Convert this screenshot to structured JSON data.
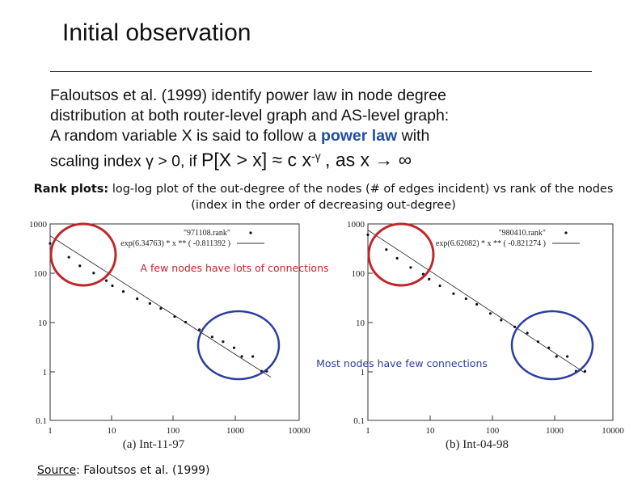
{
  "slide": {
    "title": "Initial observation",
    "body": {
      "line1": "Faloutsos et al. (1999) identify power law in node degree",
      "line2": "distribution at both router-level graph and AS-level graph:",
      "line3_pre": "A random variable X is said to follow a",
      "line3_highlight": "power law",
      "line3_post": "with",
      "line4_pre": "scaling index γ > 0, if",
      "line4_formula": "P[X > x] ≈ c x",
      "line4_exp": "-γ",
      "line4_post": ", as x → ∞"
    },
    "caption": {
      "label": "Rank plots:",
      "text": "log-log plot of the out-degree of the nodes (# of edges incident) vs rank of the nodes (index in the order of decreasing out-degree)"
    },
    "annotation_top": "A few nodes have lots of connections",
    "annotation_bottom": "Most nodes have few connections",
    "source_label": "Source",
    "source_text": ": Faloutsos et al. (1999)"
  },
  "chart_data": [
    {
      "type": "scatter",
      "title": "(a) Int-11-97",
      "xscale": "log",
      "yscale": "log",
      "xlim": [
        1,
        10000
      ],
      "ylim": [
        0.1,
        1000
      ],
      "xticks": [
        "1",
        "10",
        "100",
        "1000",
        "10000"
      ],
      "yticks": [
        "1000",
        "100",
        "10",
        "1",
        "0.1"
      ],
      "legend": [
        {
          "label": "\"971108.rank\"",
          "marker": "point"
        },
        {
          "label": "exp(6.34763) * x ** ( -0.811392 )",
          "marker": "line"
        }
      ],
      "fit": {
        "intercept": 6.34763,
        "exponent": -0.811392
      },
      "series": [
        {
          "name": "\"971108.rank\"",
          "x": [
            1,
            2,
            3,
            5,
            8,
            10,
            15,
            25,
            40,
            60,
            100,
            150,
            250,
            400,
            600,
            900,
            1200,
            1800,
            2500,
            3000
          ],
          "y": [
            400,
            210,
            140,
            100,
            70,
            55,
            42,
            30,
            24,
            19,
            13,
            10,
            7,
            5,
            4,
            3,
            2,
            2,
            1,
            1
          ]
        }
      ]
    },
    {
      "type": "scatter",
      "title": "(b) Int-04-98",
      "xscale": "log",
      "yscale": "log",
      "xlim": [
        1,
        10000
      ],
      "ylim": [
        0.1,
        1000
      ],
      "xticks": [
        "1",
        "10",
        "100",
        "1000",
        "10000"
      ],
      "yticks": [
        "1000",
        "100",
        "10",
        "1",
        "0.1"
      ],
      "legend": [
        {
          "label": "\"980410.rank\"",
          "marker": "point"
        },
        {
          "label": "exp(6.62082) * x ** ( -0.821274 )",
          "marker": "line"
        }
      ],
      "fit": {
        "intercept": 6.62082,
        "exponent": -0.821274
      },
      "series": [
        {
          "name": "\"980410.rank\"",
          "x": [
            1,
            2,
            3,
            5,
            8,
            10,
            15,
            25,
            40,
            60,
            100,
            150,
            250,
            400,
            600,
            900,
            1200,
            1800,
            2500,
            3500
          ],
          "y": [
            600,
            300,
            200,
            130,
            95,
            75,
            55,
            38,
            30,
            23,
            15,
            11,
            8,
            6,
            4,
            3,
            2,
            2,
            1,
            1
          ]
        }
      ]
    }
  ]
}
